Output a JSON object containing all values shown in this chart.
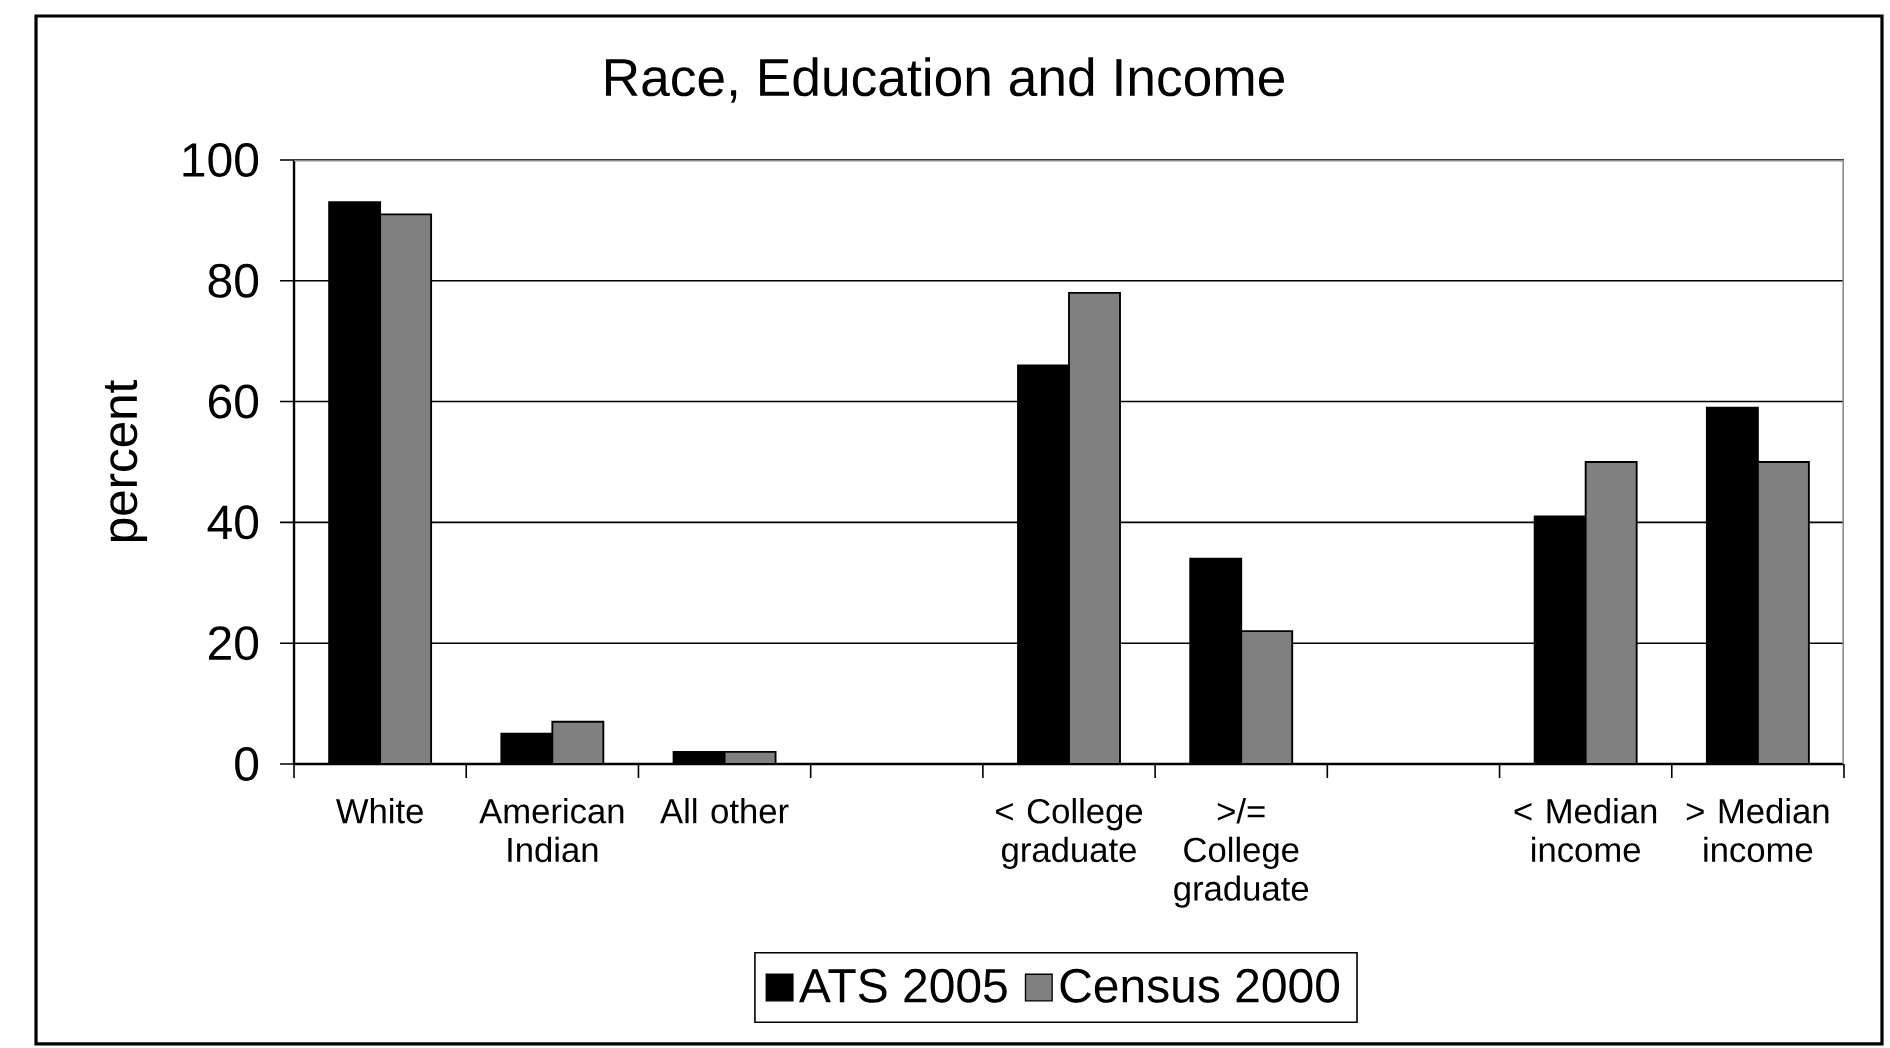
{
  "chart_data": {
    "type": "bar",
    "title": "Race, Education and Income",
    "ylabel": "percent",
    "categories": [
      "White",
      "American Indian",
      "All other",
      null,
      "< College graduate",
      ">/= College graduate",
      null,
      "< Median income",
      "> Median income"
    ],
    "series": [
      {
        "name": "ATS 2005",
        "color": "#000000",
        "values": [
          93,
          5,
          2,
          null,
          66,
          34,
          null,
          41,
          59
        ]
      },
      {
        "name": "Census 2000",
        "color": "#808080",
        "values": [
          91,
          7,
          2,
          null,
          78,
          22,
          null,
          50,
          50
        ]
      }
    ],
    "ylim": [
      0,
      100
    ],
    "yticks": [
      0,
      20,
      40,
      60,
      80,
      100
    ],
    "grid": "y",
    "legend": "bottom"
  }
}
